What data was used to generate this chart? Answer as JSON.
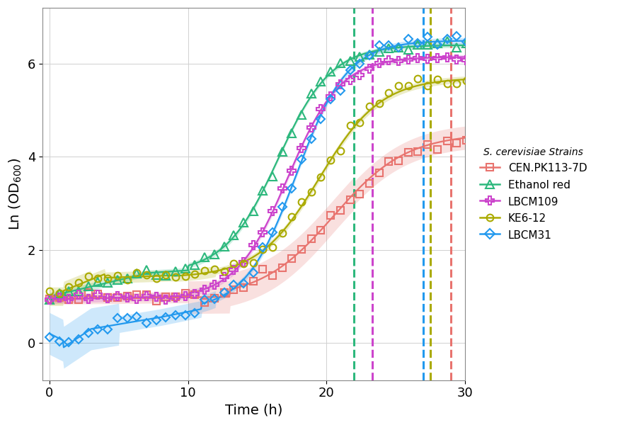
{
  "xlabel": "Time (h)",
  "ylabel": "Ln (OD$_{600}$)",
  "xlim": [
    -0.5,
    30
  ],
  "ylim": [
    -0.8,
    7.2
  ],
  "background_color": "#ffffff",
  "strains": [
    {
      "name": "CEN.PK113-7D",
      "color": "#e8736e",
      "marker": "s",
      "dash_x": 29.0
    },
    {
      "name": "Ethanol red",
      "color": "#2db87d",
      "marker": "^",
      "dash_x": 22.0
    },
    {
      "name": "LBCM109",
      "color": "#cc44cc",
      "marker": "P",
      "dash_x": 23.3
    },
    {
      "name": "KE6-12",
      "color": "#aaaa00",
      "marker": "o",
      "dash_x": 27.5
    },
    {
      "name": "LBCM31",
      "color": "#2299ee",
      "marker": "D",
      "dash_x": 27.0
    }
  ],
  "legend_title": "S. cerevisiae Strains",
  "grid_color": "#d0d0d0"
}
